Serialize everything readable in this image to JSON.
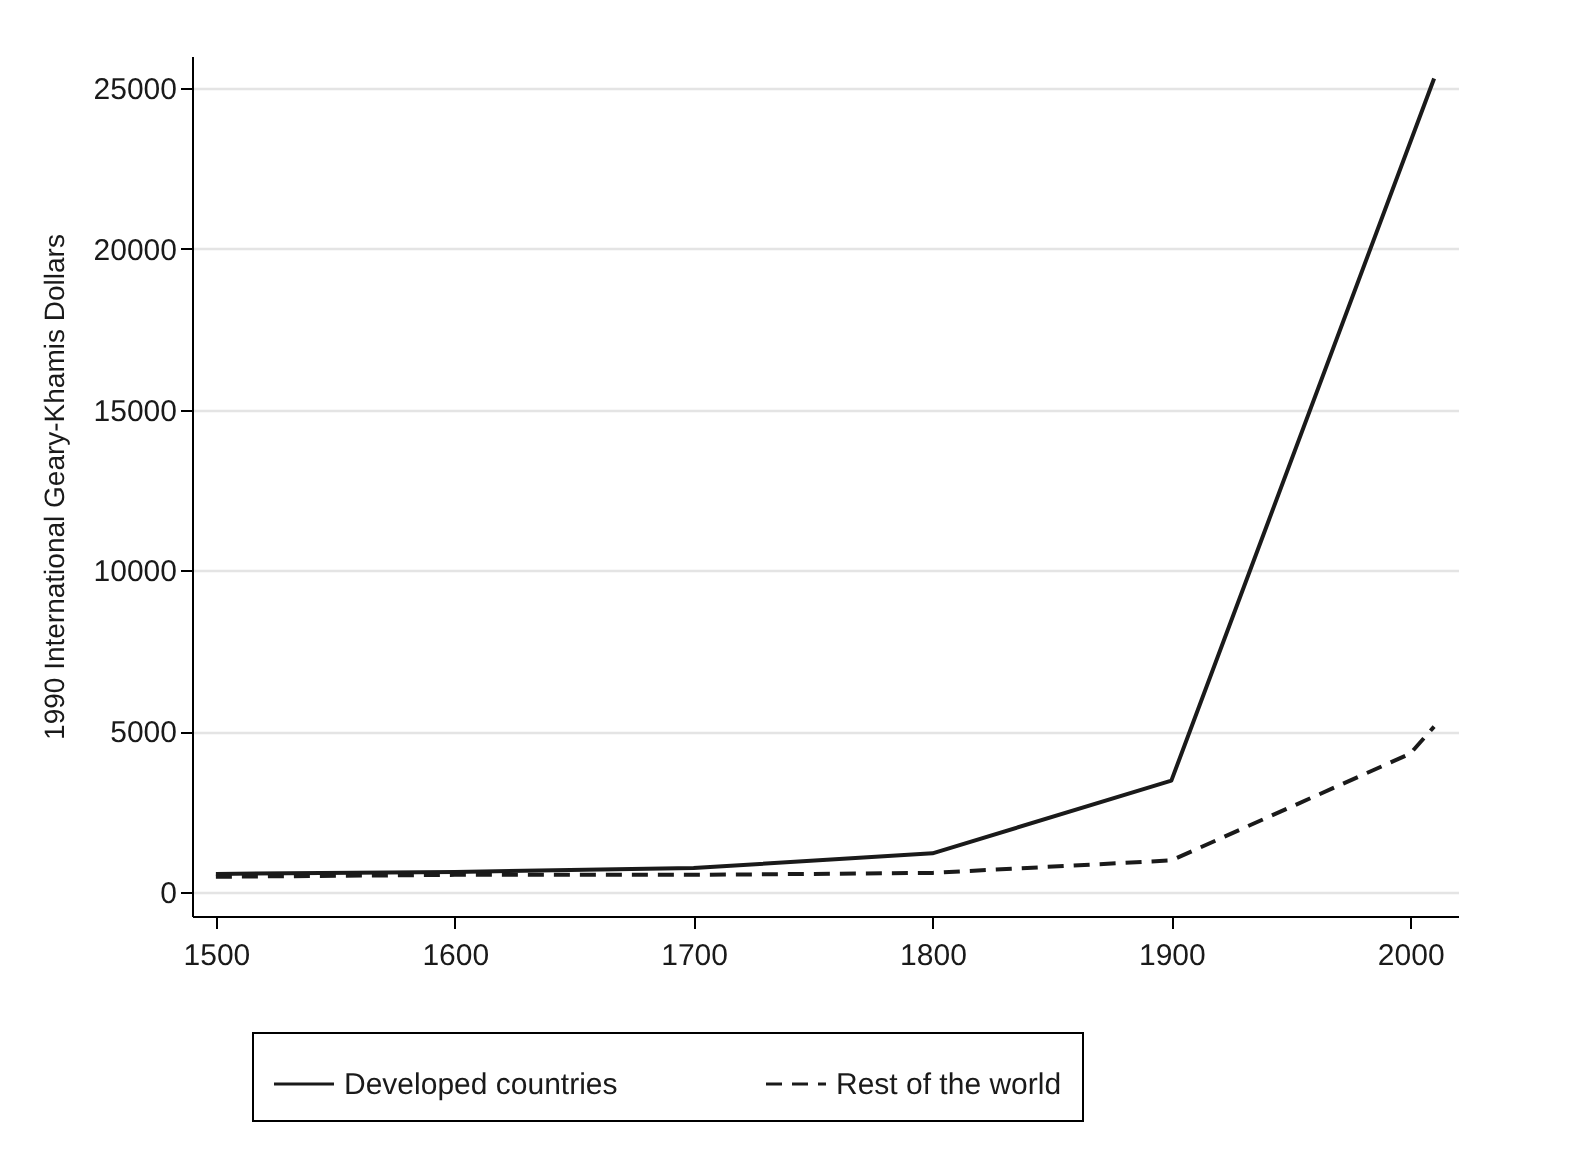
{
  "chart_data": {
    "type": "line",
    "ylabel": "1990 International Geary-Khamis Dollars",
    "x": [
      1500,
      1600,
      1700,
      1800,
      1900,
      2000,
      2010
    ],
    "series": [
      {
        "name": "Developed countries",
        "color": "#1a1a1a",
        "line_style": "solid",
        "values": [
          560,
          620,
          740,
          1200,
          3460,
          null,
          25300
        ]
      },
      {
        "name": "Rest of the world",
        "color": "#1a1a1a",
        "line_style": "dashed",
        "values": [
          470,
          530,
          530,
          590,
          980,
          4300,
          5140
        ]
      }
    ],
    "xlim": [
      1490,
      2020
    ],
    "xticks": [
      1500,
      1600,
      1700,
      1800,
      1900,
      2000
    ],
    "ylim": [
      -750,
      26000
    ],
    "yticks": [
      0,
      5000,
      10000,
      15000,
      20000,
      25000
    ],
    "grid": "y",
    "legend": "bottom",
    "marker": "none"
  }
}
